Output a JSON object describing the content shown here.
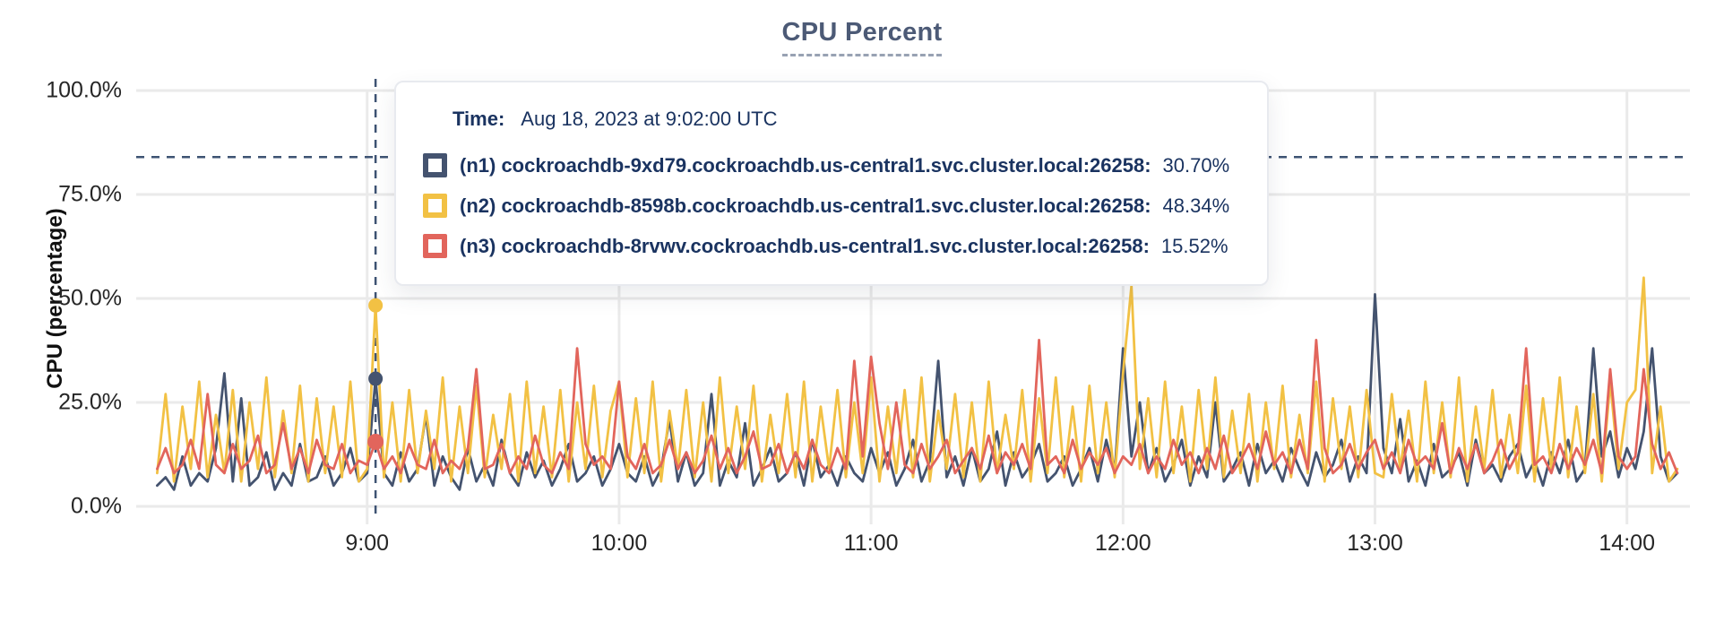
{
  "title": "CPU Percent",
  "tooltip": {
    "time_label": "Time:",
    "time_value": "Aug 18, 2023 at 9:02:00 UTC",
    "rows": [
      {
        "id": "n1",
        "label": "(n1) cockroachdb-9xd79.cockroachdb.us-central1.svc.cluster.local:26258:",
        "value": "30.70%",
        "color": "#44536F"
      },
      {
        "id": "n2",
        "label": "(n2) cockroachdb-8598b.cockroachdb.us-central1.svc.cluster.local:26258:",
        "value": "48.34%",
        "color": "#F2C144"
      },
      {
        "id": "n3",
        "label": "(n3) cockroachdb-8rvwv.cockroachdb.us-central1.svc.cluster.local:26258:",
        "value": "15.52%",
        "color": "#E2655C"
      }
    ]
  },
  "colors": {
    "grid": "#EAEAEA",
    "crosshair": "#3E5373",
    "axis_text": "#262626",
    "title_text": "#4C5A76",
    "tooltip_text": "#1A3360"
  },
  "chart_data": {
    "type": "line",
    "title": "CPU Percent",
    "xlabel": "",
    "ylabel": "CPU (percentage)",
    "ylim": [
      0,
      100
    ],
    "grid": true,
    "legend_position": "tooltip-overlay",
    "y_ticks": [
      {
        "value": 0,
        "label": "0.0%"
      },
      {
        "value": 25,
        "label": "25.0%"
      },
      {
        "value": 50,
        "label": "50.0%"
      },
      {
        "value": 75,
        "label": "75.0%"
      },
      {
        "value": 100,
        "label": "100.0%"
      }
    ],
    "x_ticks": [
      {
        "minutes": 540,
        "label": "9:00"
      },
      {
        "minutes": 600,
        "label": "10:00"
      },
      {
        "minutes": 660,
        "label": "11:00"
      },
      {
        "minutes": 720,
        "label": "12:00"
      },
      {
        "minutes": 780,
        "label": "13:00"
      },
      {
        "minutes": 840,
        "label": "14:00"
      }
    ],
    "x_domain_minutes": [
      485,
      855
    ],
    "threshold_percent": 84,
    "hover": {
      "minutes": 542,
      "time_label": "Aug 18, 2023 at 9:02:00 UTC"
    },
    "series": [
      {
        "name": "(n1) cockroachdb-9xd79.cockroachdb.us-central1.svc.cluster.local:26258",
        "color": "#44536F",
        "hover_value_percent": 30.7,
        "start_minutes": 490,
        "step_minutes": 2,
        "values_percent": [
          5,
          7,
          4,
          12,
          5,
          8,
          6,
          14,
          32,
          6,
          26,
          5,
          7,
          13,
          4,
          8,
          5,
          15,
          6,
          7,
          12,
          5,
          8,
          14,
          6,
          8,
          30.7,
          8,
          5,
          13,
          6,
          9,
          22,
          5,
          12,
          7,
          4,
          14,
          6,
          10,
          5,
          16,
          8,
          5,
          13,
          7,
          11,
          5,
          9,
          15,
          6,
          8,
          12,
          5,
          9,
          15,
          8,
          6,
          12,
          5,
          9,
          21,
          6,
          13,
          5,
          8,
          27,
          5,
          11,
          7,
          20,
          5,
          9,
          14,
          6,
          8,
          13,
          5,
          16,
          7,
          10,
          5,
          12,
          8,
          6,
          14,
          8,
          13,
          5,
          9,
          16,
          6,
          11,
          35,
          7,
          12,
          5,
          14,
          6,
          9,
          18,
          5,
          13,
          7,
          10,
          15,
          6,
          8,
          12,
          5,
          9,
          14,
          6,
          16,
          8,
          38,
          12,
          25,
          8,
          14,
          6,
          10,
          16,
          5,
          12,
          7,
          25,
          6,
          9,
          13,
          5,
          15,
          8,
          11,
          6,
          14,
          9,
          5,
          13,
          7,
          10,
          16,
          6,
          12,
          8,
          51,
          14,
          8,
          21,
          6,
          11,
          5,
          15,
          7,
          9,
          13,
          5,
          16,
          8,
          10,
          6,
          12,
          15,
          7,
          11,
          5,
          13,
          8,
          16,
          6,
          9,
          38,
          12,
          18,
          7,
          14,
          9,
          18,
          38,
          12,
          6,
          8
        ]
      },
      {
        "name": "(n2) cockroachdb-8598b.cockroachdb.us-central1.svc.cluster.local:26258",
        "color": "#F2C144",
        "hover_value_percent": 48.34,
        "start_minutes": 490,
        "step_minutes": 2,
        "values_percent": [
          8,
          27,
          6,
          24,
          9,
          30,
          7,
          22,
          8,
          28,
          6,
          25,
          9,
          31,
          7,
          23,
          8,
          29,
          6,
          26,
          8,
          24,
          7,
          30,
          6,
          9,
          48.34,
          7,
          25,
          6,
          28,
          8,
          23,
          9,
          31,
          6,
          24,
          8,
          29,
          7,
          22,
          9,
          27,
          6,
          30,
          8,
          24,
          7,
          28,
          6,
          25,
          9,
          29,
          7,
          23,
          30,
          7,
          26,
          8,
          30,
          6,
          23,
          9,
          28,
          7,
          25,
          6,
          31,
          8,
          24,
          9,
          29,
          6,
          22,
          8,
          27,
          7,
          30,
          6,
          24,
          9,
          28,
          7,
          25,
          8,
          31,
          6,
          24,
          8,
          28,
          7,
          31,
          6,
          23,
          9,
          27,
          7,
          25,
          6,
          30,
          8,
          22,
          9,
          28,
          6,
          26,
          8,
          31,
          7,
          24,
          6,
          29,
          8,
          25,
          7,
          32,
          53,
          9,
          26,
          7,
          30,
          8,
          24,
          6,
          28,
          9,
          31,
          7,
          23,
          8,
          27,
          6,
          25,
          9,
          29,
          7,
          22,
          8,
          30,
          6,
          26,
          9,
          24,
          7,
          28,
          8,
          7,
          27,
          9,
          23,
          6,
          30,
          8,
          25,
          7,
          31,
          6,
          24,
          9,
          28,
          7,
          22,
          8,
          29,
          6,
          26,
          9,
          31,
          7,
          24,
          8,
          27,
          6,
          30,
          9,
          25,
          28,
          55,
          8,
          24,
          6,
          9
        ]
      },
      {
        "name": "(n3) cockroachdb-8rvwv.cockroachdb.us-central1.svc.cluster.local:26258",
        "color": "#E2655C",
        "hover_value_percent": 15.52,
        "start_minutes": 490,
        "step_minutes": 2,
        "values_percent": [
          9,
          14,
          8,
          10,
          16,
          9,
          27,
          10,
          8,
          15,
          9,
          11,
          17,
          8,
          10,
          20,
          9,
          14,
          8,
          16,
          10,
          9,
          15,
          8,
          11,
          10,
          15.52,
          9,
          12,
          8,
          15,
          10,
          9,
          16,
          8,
          11,
          9,
          14,
          33,
          9,
          10,
          15,
          8,
          12,
          9,
          17,
          10,
          8,
          13,
          9,
          38,
          15,
          10,
          12,
          9,
          30,
          12,
          9,
          15,
          8,
          10,
          16,
          9,
          13,
          8,
          11,
          17,
          9,
          14,
          8,
          12,
          18,
          9,
          10,
          15,
          8,
          13,
          9,
          16,
          10,
          8,
          14,
          9,
          35,
          12,
          36,
          20,
          9,
          25,
          10,
          8,
          15,
          9,
          12,
          16,
          8,
          11,
          14,
          9,
          17,
          8,
          13,
          10,
          15,
          9,
          40,
          10,
          12,
          8,
          16,
          9,
          13,
          10,
          14,
          8,
          12,
          10,
          15,
          8,
          12,
          9,
          16,
          10,
          13,
          8,
          14,
          9,
          17,
          8,
          11,
          15,
          9,
          18,
          10,
          13,
          8,
          16,
          9,
          40,
          14,
          8,
          10,
          15,
          9,
          13,
          16,
          9,
          13,
          8,
          16,
          10,
          12,
          9,
          20,
          8,
          14,
          9,
          15,
          8,
          11,
          16,
          9,
          13,
          38,
          10,
          12,
          8,
          15,
          9,
          14,
          10,
          16,
          8,
          33,
          12,
          9,
          12,
          33,
          15,
          9,
          13,
          8
        ]
      }
    ]
  }
}
